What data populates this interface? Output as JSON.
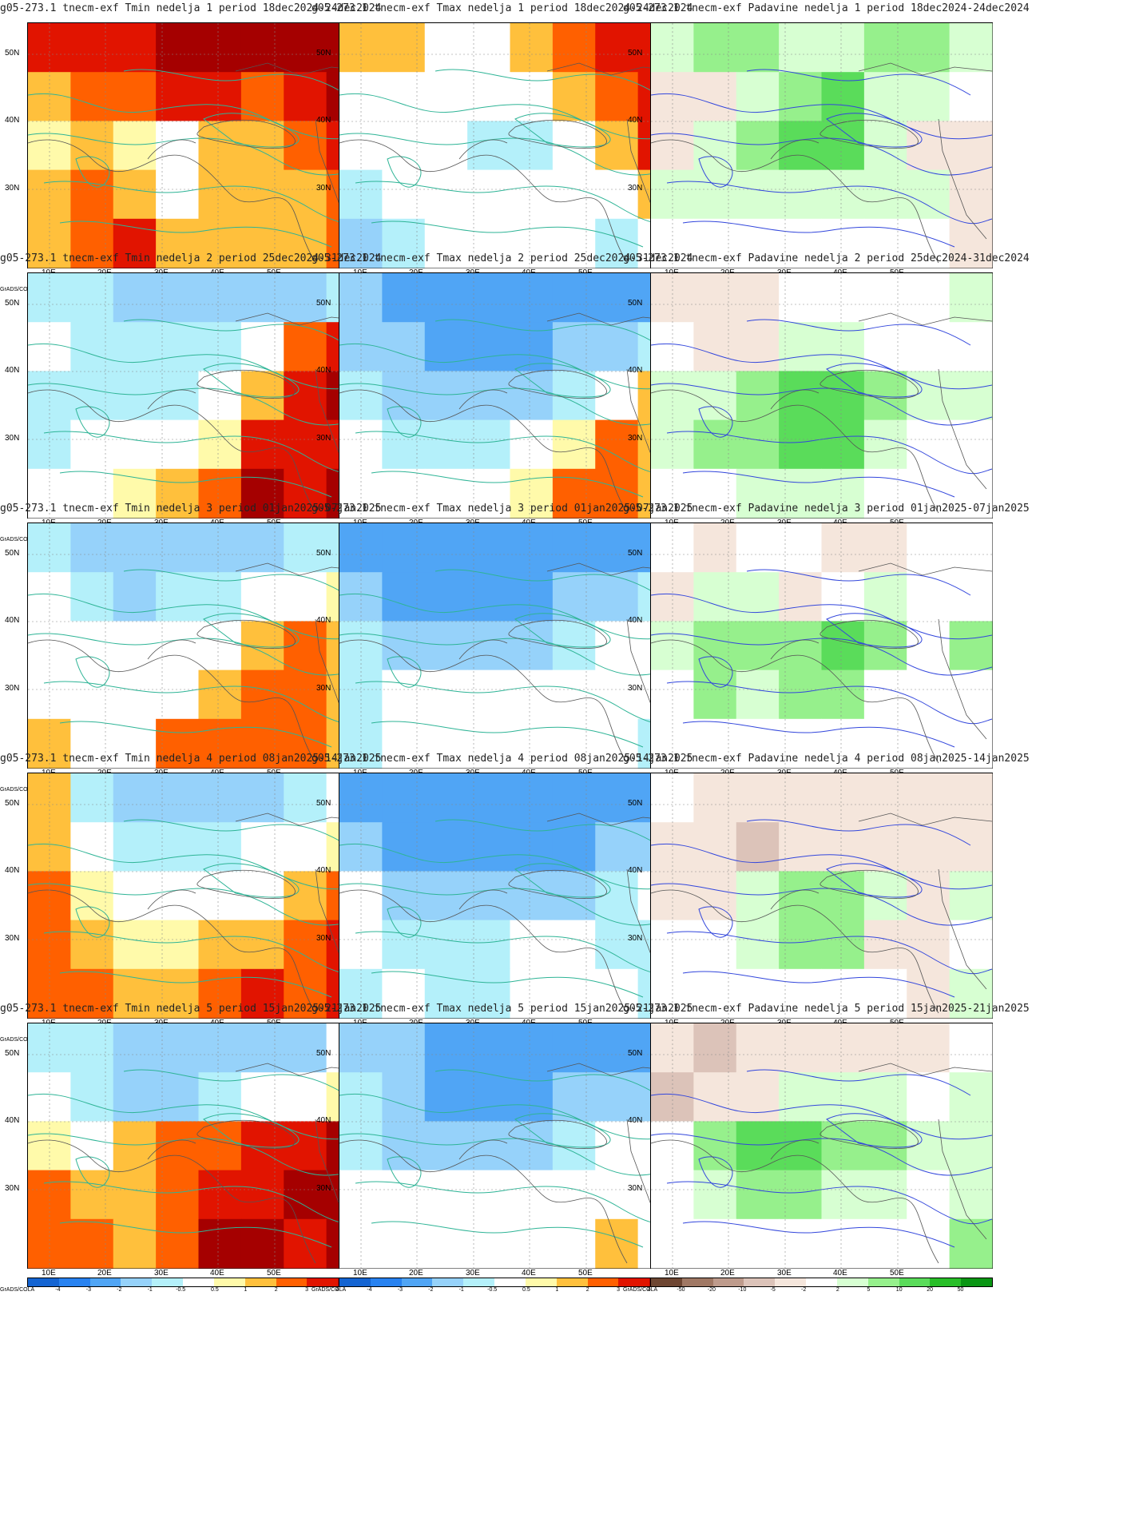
{
  "panel_titles": [
    [
      "g05-273.1 tnecm-exf Tmin nedelja 1 period 18dec2024-24dec2024",
      "g05-273.1 tnecm-exf Tmax nedelja 1 period 18dec2024-24dec2024",
      "g05-273.1 tnecm-exf Padavine nedelja 1 period 18dec2024-24dec2024"
    ],
    [
      "g05-273.1 tnecm-exf Tmin nedelja 2 period 25dec2024-31dec2024",
      "g05-273.1 tnecm-exf Tmax nedelja 2 period 25dec2024-31dec2024",
      "g05-273.1 tnecm-exf Padavine nedelja 2 period 25dec2024-31dec2024"
    ],
    [
      "g05-273.1 tnecm-exf Tmin nedelja 3 period 01jan2025-07jan2025",
      "g05-273.1 tnecm-exf Tmax nedelja 3 period 01jan2025-07jan2025",
      "g05-273.1 tnecm-exf Padavine nedelja 3 period 01jan2025-07jan2025"
    ],
    [
      "g05-273.1 tnecm-exf Tmin nedelja 4 period 08jan2025-14jan2025",
      "g05-273.1 tnecm-exf Tmax nedelja 4 period 08jan2025-14jan2025",
      "g05-273.1 tnecm-exf Padavine nedelja 4 period 08jan2025-14jan2025"
    ],
    [
      "g05-273.1 tnecm-exf Tmin nedelja 5 period 15jan2025-21jan2025",
      "g05-273.1 tnecm-exf Tmax nedelja 5 period 15jan2025-21jan2025",
      "g05-273.1 tnecm-exf Padavine nedelja 5 period 15jan2025-21jan2025"
    ]
  ],
  "lat_labels": [
    "50N",
    "40N",
    "30N"
  ],
  "lon_labels": [
    "10E",
    "20E",
    "30E",
    "40E",
    "50E"
  ],
  "grads_label": "GrADS/COLA",
  "temp_colorbar": {
    "ticks": [
      "-4",
      "-3",
      "-2",
      "-1",
      "-0.5",
      "0.5",
      "1",
      "2",
      "3",
      "4"
    ],
    "colors": [
      "#1464d2",
      "#2882f0",
      "#50a5f5",
      "#96d2fa",
      "#b4f0fa",
      "#ffffff",
      "#fffaaa",
      "#ffc03c",
      "#ff6000",
      "#e11400",
      "#a50000"
    ]
  },
  "precip_colorbar": {
    "ticks": [
      "-50",
      "-20",
      "-10",
      "-5",
      "-2",
      "2",
      "5",
      "10",
      "20",
      "50"
    ],
    "colors": [
      "#6e4632",
      "#a07864",
      "#be9b8c",
      "#dcc3b9",
      "#f5e6dc",
      "#ffffff",
      "#d7ffd2",
      "#96f08c",
      "#5adc5a",
      "#28be28",
      "#0a9614"
    ]
  },
  "field_anomalies": {
    "tmin": [
      [
        [
          3,
          3,
          3,
          4,
          4,
          4,
          4,
          4
        ],
        [
          1,
          2,
          2,
          3,
          3,
          2,
          3,
          4
        ],
        [
          0.5,
          1,
          0.5,
          0.3,
          1,
          1,
          2,
          3
        ],
        [
          1,
          2,
          1,
          0.3,
          1,
          1,
          1,
          2
        ],
        [
          1,
          2,
          3,
          1,
          1,
          1,
          1,
          2
        ]
      ],
      [
        [
          -0.7,
          -1,
          -1.5,
          -1.5,
          -2,
          -2,
          -1.5,
          -0.7
        ],
        [
          -0.3,
          -0.7,
          -1,
          -1,
          -1,
          0.3,
          2,
          3
        ],
        [
          -0.7,
          -0.7,
          -1,
          -0.7,
          -0.3,
          1,
          3,
          4
        ],
        [
          -0.7,
          -0.3,
          -0.3,
          -0.3,
          0.5,
          3,
          3,
          3
        ],
        [
          -0.5,
          -0.3,
          0.5,
          1,
          2,
          4,
          3,
          4
        ]
      ],
      [
        [
          -0.7,
          -2,
          -2,
          -2,
          -1.5,
          -1.5,
          -1,
          -0.7
        ],
        [
          -0.3,
          -1,
          -1.5,
          -1,
          -0.7,
          -0.3,
          0.3,
          0.7
        ],
        [
          -0.3,
          -0.3,
          -0.3,
          -0.3,
          -0.3,
          1,
          2,
          1
        ],
        [
          0.3,
          -0.3,
          -0.3,
          0.3,
          1,
          2,
          2,
          1
        ],
        [
          1,
          0.3,
          0.3,
          2,
          2,
          2,
          2,
          1
        ]
      ],
      [
        [
          1,
          -1,
          -2,
          -2,
          -2,
          -1.5,
          -0.7,
          -0.3
        ],
        [
          1,
          -0.5,
          -1,
          -1,
          -1,
          -0.3,
          0.3,
          0.5
        ],
        [
          2,
          0.5,
          -0.3,
          -0.3,
          -0.3,
          0.3,
          1,
          2
        ],
        [
          2,
          1,
          0.5,
          0.5,
          1,
          1,
          2,
          3
        ],
        [
          2,
          2,
          1,
          1,
          2,
          3,
          2,
          3
        ]
      ],
      [
        [
          -0.7,
          -1,
          -2,
          -2,
          -2,
          -2,
          -1.5,
          -0.5
        ],
        [
          -0.3,
          -1,
          -1.5,
          -1.5,
          -1,
          -0.5,
          0.3,
          0.5
        ],
        [
          0.5,
          0.3,
          1,
          2,
          2,
          3,
          3,
          4
        ],
        [
          2,
          1,
          1,
          2,
          3,
          3,
          4,
          4
        ],
        [
          2,
          2,
          1,
          2,
          4,
          4,
          3,
          4
        ]
      ]
    ],
    "tmax": [
      [
        [
          1,
          1,
          0.3,
          -0.3,
          1,
          2,
          3,
          3
        ],
        [
          -0.3,
          -0.3,
          0.3,
          -0.3,
          -0.3,
          1,
          2,
          3
        ],
        [
          0.3,
          -0.3,
          -0.3,
          -1,
          -0.7,
          -0.3,
          1,
          3
        ],
        [
          -0.7,
          -0.3,
          0.3,
          -0.3,
          -0.3,
          0.3,
          -0.3,
          1
        ],
        [
          -1.5,
          -1,
          -0.5,
          -0.3,
          -0.3,
          -0.3,
          -0.7,
          0.3
        ]
      ],
      [
        [
          -2,
          -3,
          -3,
          -3,
          -3,
          -3,
          -3,
          -3
        ],
        [
          -2,
          -2,
          -3,
          -3,
          -3,
          -2,
          -2,
          -1
        ],
        [
          -1,
          -2,
          -2,
          -2,
          -2,
          -1,
          -0.5,
          1
        ],
        [
          -0.5,
          -0.7,
          -1,
          -0.7,
          -0.5,
          0.5,
          2,
          1
        ],
        [
          -0.5,
          -0.5,
          -0.5,
          -0.5,
          0.5,
          2,
          2,
          1
        ]
      ],
      [
        [
          -3,
          -3,
          -3,
          -3,
          -3,
          -3,
          -3,
          -3
        ],
        [
          -2,
          -3,
          -3,
          -3,
          -3,
          -2,
          -2,
          -1
        ],
        [
          -1,
          -1.5,
          -1.5,
          -2,
          -1.5,
          -1,
          -0.5,
          -0.3
        ],
        [
          -1,
          -0.5,
          -0.3,
          -0.5,
          -0.5,
          -0.3,
          0.3,
          -0.5
        ],
        [
          -0.7,
          -0.5,
          -0.3,
          -0.5,
          -0.5,
          -0.3,
          -0.3,
          -0.7
        ]
      ],
      [
        [
          -3,
          -3,
          -3,
          -3,
          -3,
          -3,
          -3,
          -3
        ],
        [
          -2,
          -3,
          -3,
          -3,
          -3,
          -3,
          -2,
          -1.5
        ],
        [
          -0.5,
          -1.5,
          -2,
          -2,
          -2,
          -1.5,
          -1,
          -0.5
        ],
        [
          -0.3,
          -0.7,
          -1,
          -0.7,
          -0.5,
          -0.3,
          -0.7,
          -0.7
        ],
        [
          -0.7,
          -0.5,
          -0.7,
          -0.7,
          -0.5,
          -0.3,
          -0.5,
          -0.7
        ]
      ],
      [
        [
          -1.5,
          -2,
          -3,
          -3,
          -3,
          -3,
          -3,
          -3
        ],
        [
          -1,
          -2,
          -3,
          -3,
          -3,
          -2,
          -2,
          -1.5
        ],
        [
          -1,
          -1.5,
          -1.5,
          -2,
          -1.5,
          -1,
          -0.5,
          -0.3
        ],
        [
          -0.3,
          -0.3,
          -0.3,
          -0.3,
          -0.3,
          -0.3,
          -0.3,
          -0.3
        ],
        [
          -0.3,
          -0.3,
          -0.3,
          -0.3,
          -0.3,
          -0.3,
          1,
          0.3
        ]
      ]
    ],
    "precip": [
      [
        [
          3,
          6,
          6,
          3,
          3,
          6,
          6,
          3
        ],
        [
          -5,
          -3,
          3,
          8,
          12,
          3,
          3,
          -1
        ],
        [
          -5,
          3,
          6,
          12,
          10,
          3,
          -3,
          -3
        ],
        [
          3,
          3,
          3,
          3,
          3,
          3,
          3,
          -3
        ],
        [
          0,
          0,
          0,
          0,
          0,
          0,
          0,
          -3
        ]
      ],
      [
        [
          -3,
          -3,
          -3,
          0,
          0,
          0,
          0,
          3
        ],
        [
          0,
          -5,
          -3,
          3,
          3,
          0,
          0,
          0
        ],
        [
          3,
          3,
          6,
          12,
          15,
          6,
          3,
          3
        ],
        [
          3,
          6,
          6,
          12,
          12,
          3,
          0,
          0
        ],
        [
          0,
          0,
          3,
          3,
          3,
          0,
          0,
          0
        ]
      ],
      [
        [
          0,
          -3,
          0,
          0,
          -3,
          -3,
          0,
          0
        ],
        [
          -5,
          3,
          3,
          -3,
          0,
          3,
          0,
          0
        ],
        [
          3,
          6,
          6,
          6,
          12,
          6,
          0,
          6
        ],
        [
          0,
          6,
          3,
          6,
          6,
          0,
          0,
          0
        ],
        [
          0,
          0,
          0,
          0,
          0,
          0,
          0,
          0
        ]
      ],
      [
        [
          0,
          -3,
          -5,
          -5,
          -3,
          -3,
          -3,
          -3
        ],
        [
          -5,
          -5,
          -10,
          -3,
          -3,
          -5,
          -3,
          -3
        ],
        [
          -5,
          -5,
          3,
          6,
          6,
          3,
          -3,
          3
        ],
        [
          0,
          0,
          3,
          6,
          6,
          -3,
          -3,
          0
        ],
        [
          0,
          0,
          0,
          0,
          0,
          0,
          -3,
          3
        ]
      ],
      [
        [
          -5,
          -8,
          -5,
          -3,
          -3,
          -3,
          -3,
          0
        ],
        [
          -8,
          -5,
          -3,
          3,
          3,
          3,
          0,
          3
        ],
        [
          0,
          8,
          12,
          10,
          6,
          6,
          3,
          3
        ],
        [
          0,
          3,
          6,
          6,
          3,
          3,
          0,
          3
        ],
        [
          0,
          0,
          0,
          0,
          0,
          0,
          0,
          6
        ]
      ]
    ]
  }
}
